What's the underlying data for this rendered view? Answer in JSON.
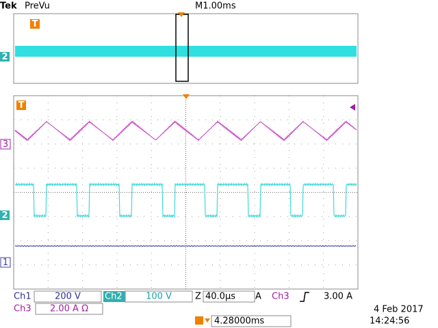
{
  "header": {
    "brand": "Tek",
    "mode": "PreVu",
    "timebase": "M1.00ms"
  },
  "markers": {
    "trigger": "T",
    "ch3": "3",
    "ch2": "2",
    "ch1": "1"
  },
  "readout": {
    "ch1_label": "Ch1",
    "ch1_scale": "200 V",
    "ch2_label": "Ch2",
    "ch2_scale": "100 V",
    "zoom_label": "Z",
    "zoom_scale": "40.0µs",
    "trigger_label": "A",
    "trigger_source": "Ch3",
    "trigger_level": "3.00 A",
    "ch3_label": "Ch3",
    "ch3_scale": "2.00 A Ω",
    "trigger_position": "4.28000ms"
  },
  "timestamp": {
    "date": "4 Feb  2017",
    "time": "14:24:56"
  }
}
